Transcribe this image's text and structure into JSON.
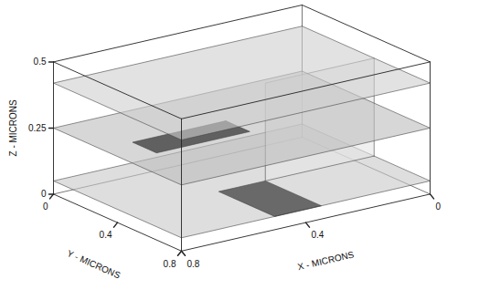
{
  "chart_data": {
    "type": "surface3d",
    "xlabel": "X - MICRONS",
    "ylabel": "Y - MICRONS",
    "zlabel": "Z - MICRONS",
    "xlim": [
      0,
      0.8
    ],
    "ylim": [
      0,
      0.8
    ],
    "zlim": [
      0,
      0.5
    ],
    "xticks": [
      0,
      0.4,
      0.8
    ],
    "yticks": [
      0,
      0.4,
      0.8
    ],
    "zticks": [
      0,
      0.25,
      0.5
    ],
    "surfaces": [
      {
        "color": "#c8c8c8",
        "vertices": [
          [
            0,
            0,
            0.05
          ],
          [
            0.8,
            0,
            0.05
          ],
          [
            0.8,
            0.8,
            0.05
          ],
          [
            0,
            0.8,
            0.05
          ]
        ]
      },
      {
        "color": "#1a1a1a",
        "vertices": [
          [
            0.35,
            0.45,
            0.05
          ],
          [
            0.5,
            0.45,
            0.05
          ],
          [
            0.5,
            0.8,
            0.05
          ],
          [
            0.35,
            0.8,
            0.05
          ]
        ]
      },
      {
        "color": "#e6e6e6",
        "vertices": [
          [
            0,
            0.45,
            0.05
          ],
          [
            0.35,
            0.45,
            0.05
          ],
          [
            0.35,
            0.45,
            0.42
          ],
          [
            0,
            0.45,
            0.42
          ]
        ]
      },
      {
        "color": "#bdbdbd",
        "vertices": [
          [
            0,
            0,
            0.25
          ],
          [
            0.8,
            0,
            0.25
          ],
          [
            0.8,
            0.8,
            0.25
          ],
          [
            0,
            0.8,
            0.25
          ]
        ]
      },
      {
        "color": "#111111",
        "vertices": [
          [
            0.4,
            0.3,
            0.25
          ],
          [
            0.7,
            0.3,
            0.25
          ],
          [
            0.7,
            0.45,
            0.25
          ],
          [
            0.4,
            0.45,
            0.25
          ]
        ]
      },
      {
        "color": "#cfcfcf",
        "vertices": [
          [
            0,
            0,
            0.42
          ],
          [
            0.8,
            0,
            0.42
          ],
          [
            0.8,
            0.8,
            0.42
          ],
          [
            0,
            0.8,
            0.42
          ]
        ]
      }
    ]
  }
}
